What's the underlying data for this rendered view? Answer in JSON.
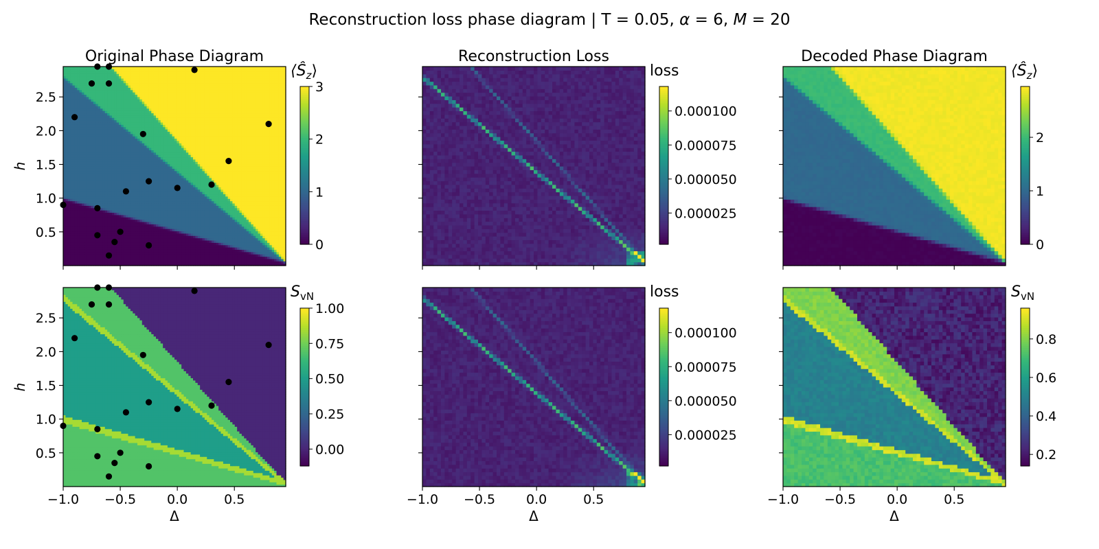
{
  "figure": {
    "suptitle_prefix": "Reconstruction loss phase diagram | T = 0.05, ",
    "suptitle_alpha": "α",
    "suptitle_mid": " = 6, ",
    "suptitle_M": "M",
    "suptitle_suffix": " = 20"
  },
  "colors": {
    "viridis": [
      "#440154",
      "#482878",
      "#3e4989",
      "#31688e",
      "#26828e",
      "#1f9e89",
      "#35b779",
      "#6ece58",
      "#b5de2b",
      "#fde725"
    ],
    "points": "#000000"
  },
  "chart_data": [
    {
      "id": "orig_sz",
      "type": "heatmap",
      "title": "Original Phase Diagram",
      "xlabel": "",
      "ylabel": "h",
      "cbar_label": "⟨Ŝz⟩",
      "xlim": [
        -1.0,
        0.95
      ],
      "ylim": [
        0.0,
        2.95
      ],
      "vmin": 0,
      "vmax": 3,
      "xticks": [],
      "yticks": [
        0.5,
        1.0,
        1.5,
        2.0,
        2.5
      ],
      "yticklabels": [
        "0.5",
        "1.0",
        "1.5",
        "2.0",
        "2.5"
      ],
      "cbar_ticks": [
        0,
        1,
        2,
        3
      ],
      "cbar_ticklabels": [
        "0",
        "1",
        "2",
        "3"
      ],
      "regions": [
        {
          "phase": 0,
          "value": 0.0
        },
        {
          "phase": 1,
          "value": 1.0
        },
        {
          "phase": 2,
          "value": 2.0
        },
        {
          "phase": 3,
          "value": 3.0
        }
      ],
      "phase_boundaries": [
        {
          "name": "b1",
          "from": [
            -1.0,
            1.0
          ],
          "to": [
            0.95,
            0.05
          ]
        },
        {
          "name": "b2",
          "from": [
            -1.0,
            2.8
          ],
          "to": [
            0.95,
            0.05
          ]
        },
        {
          "name": "b3",
          "from": [
            -0.58,
            2.95
          ],
          "to": [
            0.95,
            0.05
          ]
        }
      ],
      "points": {
        "delta": [
          -0.7,
          -0.6,
          0.15,
          -0.75,
          -0.6,
          -0.9,
          0.8,
          -0.3,
          0.45,
          -0.25,
          0.3,
          0.0,
          -0.45,
          -1.0,
          -0.7,
          -0.5,
          -0.7,
          -0.55,
          -0.25,
          -0.6
        ],
        "h": [
          2.95,
          2.95,
          2.9,
          2.7,
          2.7,
          2.2,
          2.1,
          1.95,
          1.55,
          1.25,
          1.2,
          1.15,
          1.1,
          0.9,
          0.85,
          0.5,
          0.45,
          0.35,
          0.3,
          0.15
        ]
      }
    },
    {
      "id": "loss_top",
      "type": "heatmap",
      "title": "Reconstruction Loss",
      "xlabel": "",
      "ylabel": "",
      "cbar_label": "loss",
      "xlim": [
        -1.0,
        0.95
      ],
      "ylim": [
        0.0,
        2.95
      ],
      "vmin": 2e-06,
      "vmax": 0.000118,
      "xticks": [],
      "yticks": [],
      "cbar_ticks": [
        2.5e-05,
        5e-05,
        7.5e-05,
        0.0001
      ],
      "cbar_ticklabels": [
        "0.000025",
        "0.000050",
        "0.000075",
        "0.000100"
      ],
      "lines": [
        {
          "name": "b1",
          "from": [
            -1.0,
            2.8
          ],
          "to": [
            0.95,
            0.05
          ],
          "peak": 7e-05
        },
        {
          "name": "b2",
          "from": [
            -0.58,
            2.95
          ],
          "to": [
            0.95,
            0.05
          ],
          "peak": 3e-05
        }
      ],
      "background": 1.2e-05
    },
    {
      "id": "decoded_sz",
      "type": "heatmap",
      "title": "Decoded Phase Diagram",
      "xlabel": "",
      "ylabel": "",
      "cbar_label": "⟨Ŝz⟩",
      "xlim": [
        -1.0,
        0.95
      ],
      "ylim": [
        0.0,
        2.95
      ],
      "vmin": 0,
      "vmax": 2.95,
      "xticks": [],
      "yticks": [],
      "cbar_ticks": [
        0,
        1,
        2
      ],
      "cbar_ticklabels": [
        "0",
        "1",
        "2"
      ],
      "regions": [
        {
          "phase": 0,
          "value": 0.0
        },
        {
          "phase": 1,
          "value": 1.0
        },
        {
          "phase": 2,
          "value": 2.0
        },
        {
          "phase": 3,
          "value": 2.9
        }
      ]
    },
    {
      "id": "orig_svn",
      "type": "heatmap",
      "title": "",
      "xlabel": "Δ",
      "ylabel": "h",
      "cbar_label": "SvN",
      "xlim": [
        -1.0,
        0.95
      ],
      "ylim": [
        0.0,
        2.95
      ],
      "vmin": -0.12,
      "vmax": 1.0,
      "xticks": [
        -1.0,
        -0.5,
        0.0,
        0.5
      ],
      "xticklabels": [
        "−1.0",
        "−0.5",
        "0.0",
        "0.5"
      ],
      "yticks": [
        0.5,
        1.0,
        1.5,
        2.0,
        2.5
      ],
      "yticklabels": [
        "0.5",
        "1.0",
        "1.5",
        "2.0",
        "2.5"
      ],
      "cbar_ticks": [
        0.0,
        0.25,
        0.5,
        0.75,
        1.0
      ],
      "cbar_ticklabels": [
        "0.00",
        "0.25",
        "0.50",
        "0.75",
        "1.00"
      ],
      "regions": [
        {
          "phase": 0,
          "value": 0.69
        },
        {
          "phase": 1,
          "value": 0.5
        },
        {
          "phase": 2,
          "value": 0.69
        },
        {
          "phase": 3,
          "value": 0.0
        }
      ],
      "ridge_value": 0.85
    },
    {
      "id": "loss_bottom",
      "type": "heatmap",
      "title": "",
      "xlabel": "Δ",
      "ylabel": "",
      "cbar_label": "loss",
      "xlim": [
        -1.0,
        0.95
      ],
      "ylim": [
        0.0,
        2.95
      ],
      "vmin": 2e-06,
      "vmax": 0.000118,
      "xticks": [
        -1.0,
        -0.5,
        0.0,
        0.5
      ],
      "xticklabels": [
        "−1.0",
        "−0.5",
        "0.0",
        "0.5"
      ],
      "yticks": [],
      "cbar_ticks": [
        2.5e-05,
        5e-05,
        7.5e-05,
        0.0001
      ],
      "cbar_ticklabels": [
        "0.000025",
        "0.000050",
        "0.000075",
        "0.000100"
      ]
    },
    {
      "id": "decoded_svn",
      "type": "heatmap",
      "title": "",
      "xlabel": "Δ",
      "ylabel": "",
      "cbar_label": "SvN",
      "xlim": [
        -1.0,
        0.95
      ],
      "ylim": [
        0.0,
        2.95
      ],
      "vmin": 0.14,
      "vmax": 0.96,
      "xticks": [
        -1.0,
        -0.5,
        0.0,
        0.5
      ],
      "xticklabels": [
        "−1.0",
        "−0.5",
        "0.0",
        "0.5"
      ],
      "yticks": [],
      "cbar_ticks": [
        0.2,
        0.4,
        0.6,
        0.8
      ],
      "cbar_ticklabels": [
        "0.2",
        "0.4",
        "0.6",
        "0.8"
      ],
      "regions": [
        {
          "phase": 0,
          "value": 0.72
        },
        {
          "phase": 1,
          "value": 0.5
        },
        {
          "phase": 2,
          "value": 0.8
        },
        {
          "phase": 3,
          "value": 0.22
        }
      ],
      "ridge_value": 0.9
    }
  ]
}
